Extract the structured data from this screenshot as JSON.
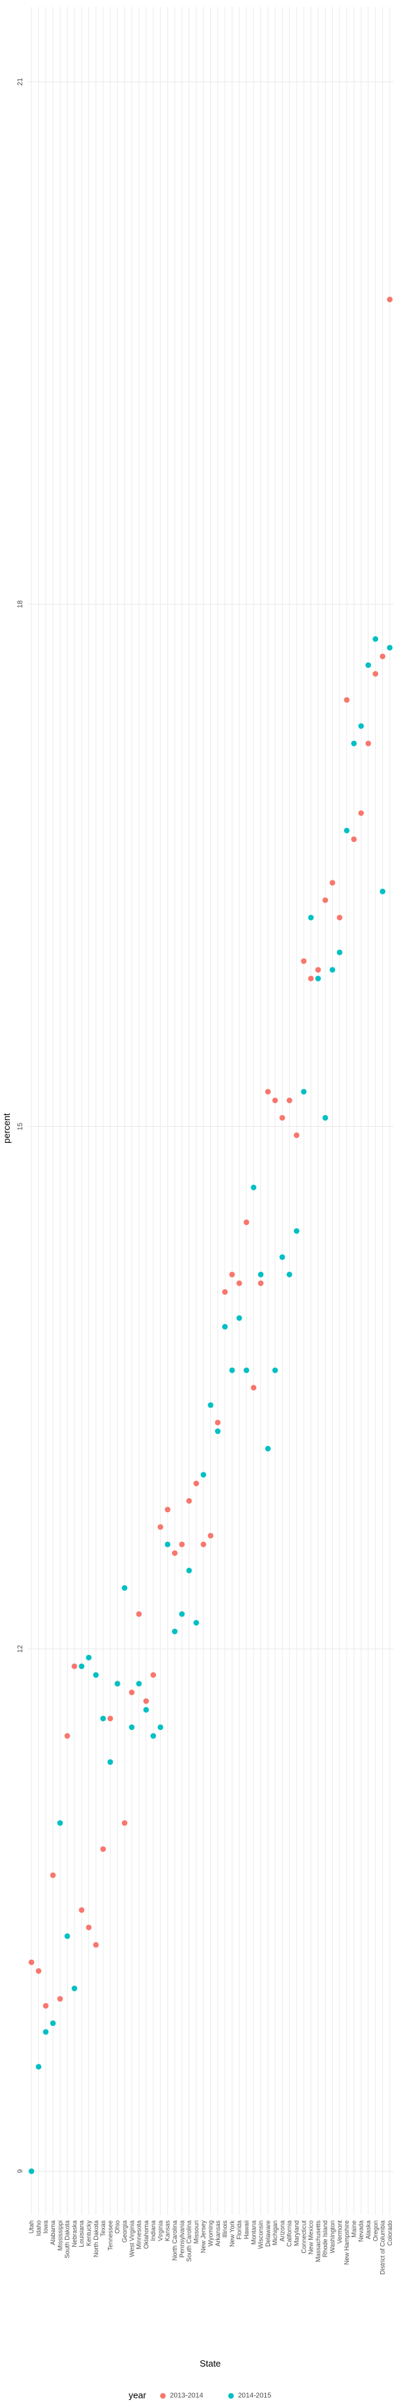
{
  "chart_data": {
    "type": "scatter",
    "x_label": "State",
    "y_label": "percent",
    "legend_title": "year",
    "categories": [
      "Utah",
      "Idaho",
      "Iowa",
      "Alabama",
      "Mississippi",
      "South Dakota",
      "Nebraska",
      "Louisiana",
      "Kentucky",
      "North Dakota",
      "Texas",
      "Tennessee",
      "Ohio",
      "Georgia",
      "West Virginia",
      "Minnesota",
      "Oklahoma",
      "Indiana",
      "Virginia",
      "Kansas",
      "North Carolina",
      "Pennsylvania",
      "South Carolina",
      "Missouri",
      "New Jersey",
      "Wyoming",
      "Arkansas",
      "Illinois",
      "New York",
      "Florida",
      "Hawaii",
      "Montana",
      "Wisconsin",
      "Delaware",
      "Michigan",
      "Arizona",
      "California",
      "Maryland",
      "Connecticut",
      "New Mexico",
      "Massachusetts",
      "Rhode Island",
      "Washington",
      "Vermont",
      "New Hampshire",
      "Maine",
      "Nevada",
      "Alaska",
      "Oregon",
      "District of Columbia",
      "Colorado"
    ],
    "series": [
      {
        "name": "2013-2014",
        "color": "#F8766D",
        "values": [
          10.2,
          10.15,
          9.95,
          10.7,
          9.99,
          11.5,
          11.9,
          10.5,
          10.4,
          10.3,
          10.85,
          11.6,
          11.8,
          11.0,
          11.75,
          12.2,
          11.7,
          11.85,
          12.7,
          12.8,
          12.55,
          12.6,
          12.85,
          12.95,
          12.6,
          12.65,
          13.3,
          14.05,
          14.15,
          14.1,
          14.45,
          13.5,
          14.1,
          15.2,
          15.15,
          15.05,
          15.15,
          14.95,
          15.95,
          15.85,
          15.9,
          16.3,
          16.4,
          16.2,
          17.45,
          16.65,
          16.8,
          17.2,
          17.6,
          17.7,
          19.75
        ]
      },
      {
        "name": "2014-2015",
        "color": "#00BFC4",
        "values": [
          9.0,
          9.6,
          9.8,
          9.85,
          11.0,
          10.35,
          10.05,
          11.9,
          11.95,
          11.85,
          11.6,
          11.35,
          11.8,
          12.35,
          11.55,
          11.8,
          11.65,
          11.5,
          11.55,
          12.6,
          12.1,
          12.2,
          12.45,
          12.15,
          13.0,
          13.4,
          13.25,
          13.85,
          13.6,
          13.9,
          13.6,
          14.65,
          14.15,
          13.15,
          13.6,
          14.25,
          14.15,
          14.4,
          15.2,
          16.2,
          15.85,
          15.05,
          15.9,
          16.0,
          16.7,
          17.2,
          17.3,
          17.65,
          17.8,
          16.35,
          17.75
        ]
      }
    ],
    "ylim": [
      8.75,
      21.43
    ],
    "yticks": [
      9,
      12,
      15,
      18,
      21
    ],
    "grid": true,
    "legend_position": "bottom"
  }
}
